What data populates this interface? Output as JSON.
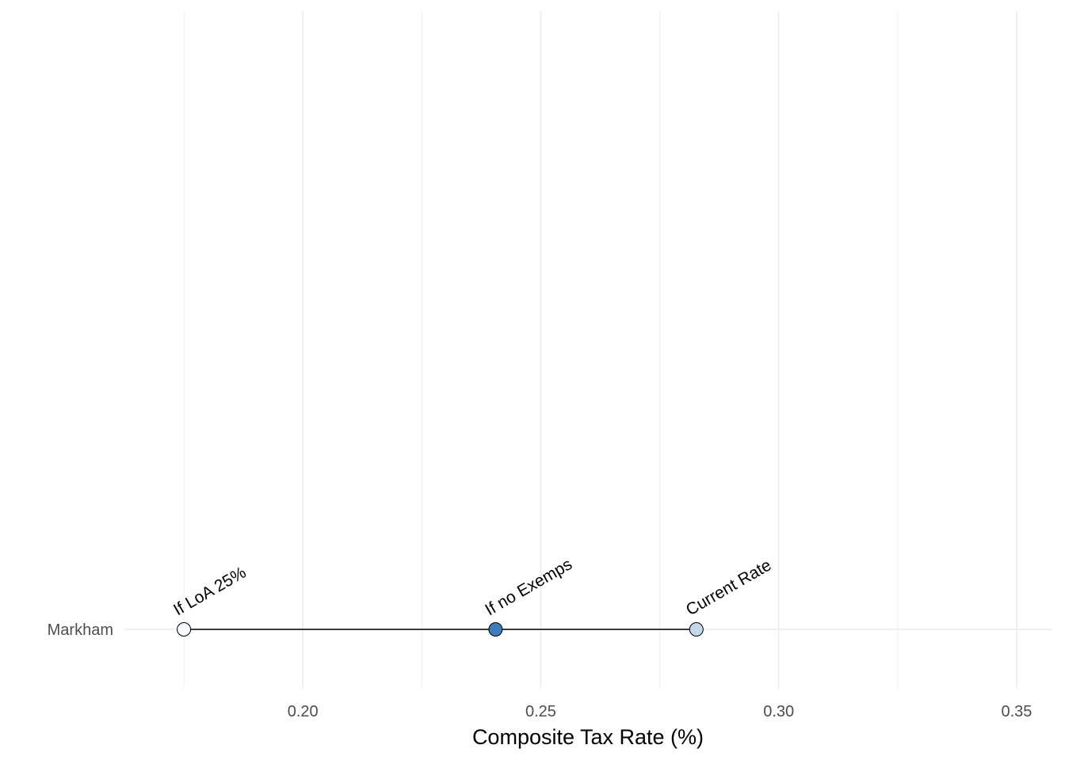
{
  "chart_data": {
    "type": "scatter",
    "title": "",
    "xlabel": "Composite Tax Rate (%)",
    "ylabel": "",
    "xlim": [
      0.1625,
      0.3575
    ],
    "x_ticks": [
      0.2,
      0.25,
      0.3,
      0.35
    ],
    "x_tick_labels": [
      "0.20",
      "0.25",
      "0.30",
      "0.35"
    ],
    "grid": true,
    "categories": [
      "Markham"
    ],
    "series": [
      {
        "category": "Markham",
        "points": [
          {
            "label": "If LoA 25%",
            "value": 0.175,
            "color": "#f7fbff"
          },
          {
            "label": "If no Exemps",
            "value": 0.2405,
            "color": "#3a7ebc"
          },
          {
            "label": "Current Rate",
            "value": 0.2827,
            "color": "#c6d7e8"
          }
        ],
        "range": [
          0.175,
          0.2827
        ]
      }
    ]
  }
}
